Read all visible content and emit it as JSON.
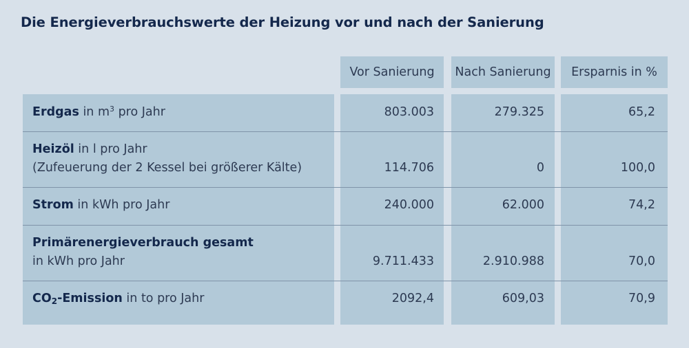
{
  "title": "Die Energieverbrauchswerte der Heizung vor und nach der Sanierung",
  "headers": {
    "before": "Vor Sanierung",
    "after": "Nach Sanierung",
    "savings": "Ersparnis in %"
  },
  "rows": [
    {
      "label_bold": "Erdgas",
      "label_rest": " in m",
      "label_sup": "3",
      "label_tail": " pro Jahr",
      "before": "803.003",
      "after": "279.325",
      "savings": "65,2"
    },
    {
      "label_bold": "Heizöl",
      "label_rest": " in l pro Jahr",
      "label_line2": "(Zufeuerung der 2 Kessel bei größerer Kälte)",
      "before": "114.706",
      "after": "0",
      "savings": "100,0"
    },
    {
      "label_bold": "Strom",
      "label_rest": " in kWh pro Jahr",
      "before": "240.000",
      "after": "62.000",
      "savings": "74,2"
    },
    {
      "label_bold": "Primärenergieverbrauch gesamt",
      "label_line2": "in kWh pro Jahr",
      "before": "9.711.433",
      "after": "2.910.988",
      "savings": "70,0"
    },
    {
      "label_bold_pre": "CO",
      "label_bold_sub": "2",
      "label_bold_post": "-Emission",
      "label_rest": " in to pro Jahr",
      "before": "2092,4",
      "after": "609,03",
      "savings": "70,9"
    }
  ]
}
